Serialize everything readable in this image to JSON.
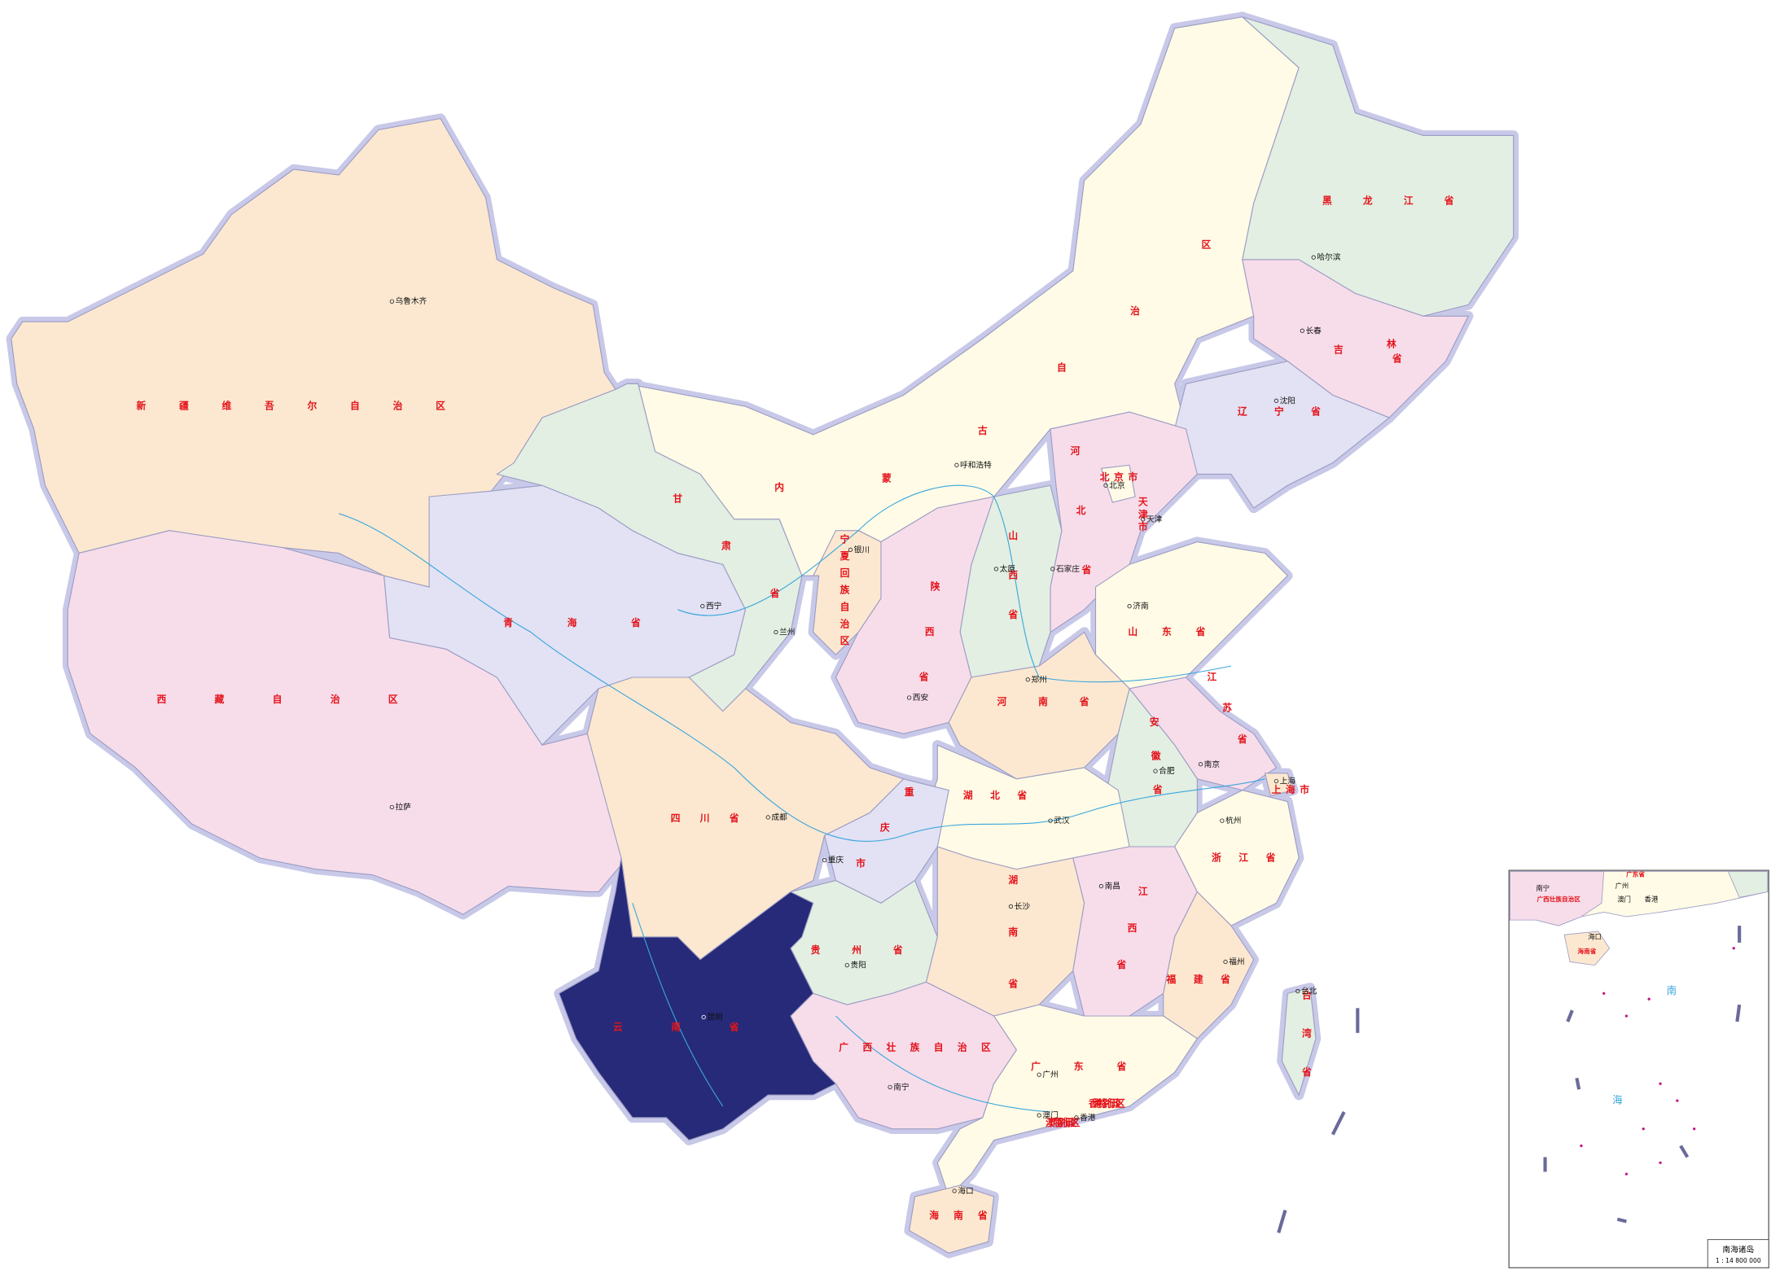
{
  "province_labels": [
    "新疆维吾尔自治区",
    "西藏自治区",
    "青海省",
    "甘肃省",
    "内蒙古自治区",
    "黑龙江省",
    "吉林省",
    "辽宁省",
    "北京市",
    "天津市",
    "河北省",
    "山西省",
    "陕西省",
    "宁夏回族自治区",
    "山东省",
    "河南省",
    "江苏省",
    "安徽省",
    "上海市",
    "浙江省",
    "湖北省",
    "重庆市",
    "四川省",
    "贵州省",
    "湖南省",
    "江西省",
    "福建省",
    "广西壮族自治区",
    "广东省",
    "云南省",
    "海南省",
    "台湾省",
    "香港特别行政区",
    "澳门特别行政区"
  ],
  "city_labels": [
    "乌鲁木齐",
    "拉萨",
    "西宁",
    "兰州",
    "银川",
    "呼和浩特",
    "太原",
    "石家庄",
    "北京",
    "天津",
    "哈尔滨",
    "长春",
    "沈阳",
    "济南",
    "郑州",
    "西安",
    "南京",
    "合肥",
    "上海",
    "杭州",
    "武汉",
    "成都",
    "重庆",
    "贵阳",
    "长沙",
    "南昌",
    "福州",
    "台北",
    "昆明",
    "南宁",
    "广州",
    "澳门",
    "香港",
    "海口"
  ],
  "inset": {
    "title": "南海诸岛",
    "scale": "1 : 14 800 000",
    "sea_labels": [
      "南",
      "海"
    ],
    "labels": [
      "南宁",
      "广州",
      "澳门",
      "香港",
      "海口",
      "广东省",
      "广西壮族自治区",
      "海南省"
    ]
  }
}
